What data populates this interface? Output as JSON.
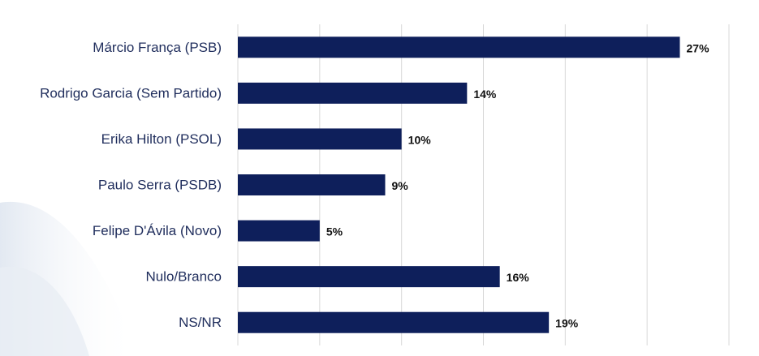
{
  "chart_data": {
    "type": "bar",
    "orientation": "horizontal",
    "categories": [
      "Márcio França (PSB)",
      "Rodrigo Garcia (Sem Partido)",
      "Erika Hilton (PSOL)",
      "Paulo Serra (PSDB)",
      "Felipe D'Ávila (Novo)",
      "Nulo/Branco",
      "NS/NR"
    ],
    "values": [
      27,
      14,
      10,
      9,
      5,
      16,
      19
    ],
    "value_labels": [
      "27%",
      "14%",
      "10%",
      "9%",
      "5%",
      "16%",
      "19%"
    ],
    "xlim": [
      0,
      30
    ],
    "grid": true,
    "bar_color": "#0e1f5b"
  }
}
